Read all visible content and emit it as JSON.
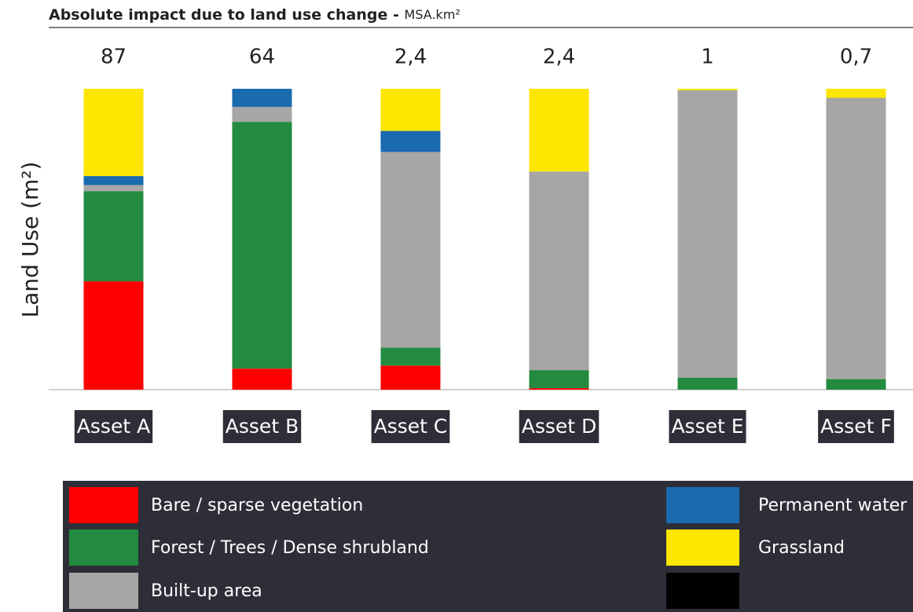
{
  "chart_data": {
    "type": "stacked_bar_percent",
    "title": "Absolute impact due to land use change",
    "title_separator": "-",
    "title_unit": "MSA.km²",
    "y_axis_label": "Land Use (m²)",
    "categories": [
      "Asset A",
      "Asset B",
      "Asset C",
      "Asset D",
      "Asset E",
      "Asset F"
    ],
    "impact_values": [
      87,
      64,
      2.4,
      2.4,
      1,
      0.7
    ],
    "impact_labels": [
      "87",
      "64",
      "2,4",
      "2,4",
      "1",
      "0,7"
    ],
    "ylim": [
      0,
      100
    ],
    "series": [
      {
        "name": "Bare / sparse vegetation",
        "color": "#ff0000",
        "values": [
          36,
          7,
          8,
          0.5,
          0,
          0
        ]
      },
      {
        "name": "Forest / Trees / Dense shrubland",
        "color": "#238b3f",
        "values": [
          30,
          82,
          6,
          6,
          4,
          3.5
        ]
      },
      {
        "name": "Built-up area",
        "color": "#a6a6a6",
        "values": [
          2,
          5,
          65,
          66,
          95.5,
          93.5
        ]
      },
      {
        "name": "Permanent water",
        "color": "#1a6aae",
        "values": [
          3,
          6,
          7,
          0,
          0,
          0
        ]
      },
      {
        "name": "Grassland",
        "color": "#ffe600",
        "values": [
          29,
          0,
          14,
          27.5,
          0.5,
          3
        ]
      }
    ],
    "legend": "bottom"
  }
}
